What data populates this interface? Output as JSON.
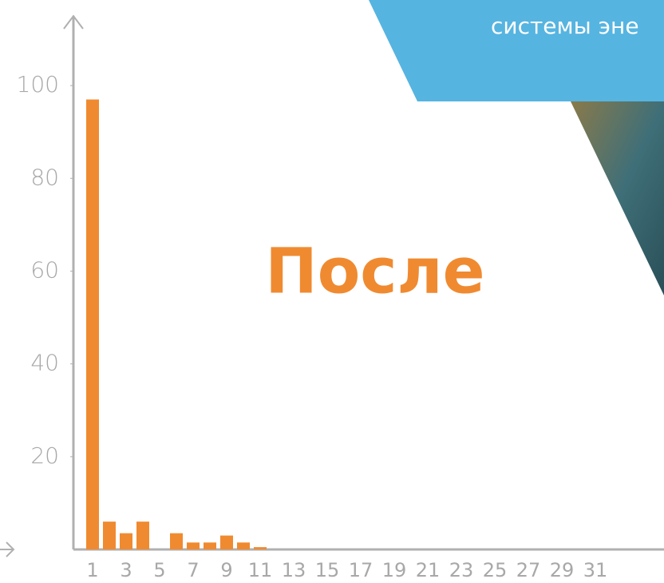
{
  "chart_data": {
    "type": "bar",
    "title": "После",
    "banner_text": "системы эне",
    "categories": [
      "1",
      null,
      "3",
      null,
      "5",
      null,
      "7",
      null,
      "9",
      null,
      "11",
      null,
      "13",
      null,
      "15",
      null,
      "17",
      null,
      "19",
      null,
      "21",
      null,
      "23",
      null,
      "25",
      null,
      "27",
      null,
      "29",
      null,
      "31",
      null
    ],
    "values": [
      97,
      6,
      3.5,
      6,
      0,
      3.5,
      1.5,
      1.5,
      3,
      1.5,
      0.5,
      0,
      0,
      0,
      0,
      0,
      0,
      0,
      0,
      0,
      0,
      0,
      0,
      0,
      0,
      0,
      0,
      0,
      0,
      0,
      0,
      0
    ],
    "color": "#f08a30",
    "ylim": [
      0,
      115
    ],
    "yticks": [
      20,
      40,
      60,
      80,
      100
    ],
    "grid": false
  }
}
